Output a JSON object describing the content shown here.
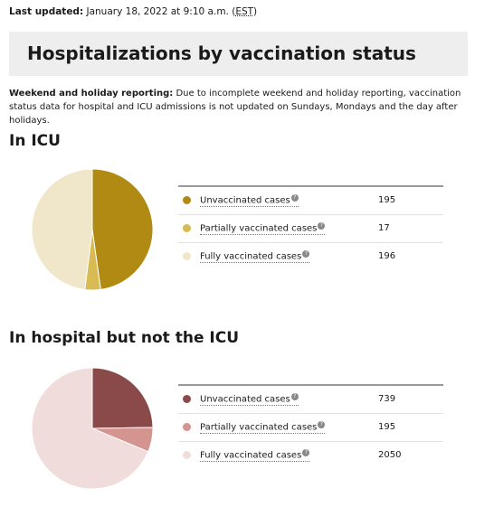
{
  "header": {
    "updated_label": "Last updated:",
    "updated_value": "January 18, 2022 at 9:10 a.m.",
    "timezone": "EST"
  },
  "title": "Hospitalizations by vaccination status",
  "note": {
    "label": "Weekend and holiday reporting:",
    "text": "Due to incomplete weekend and holiday reporting, vaccination status data for hospital and ICU admissions is not updated on Sundays, Mondays and the day after holidays."
  },
  "help_glyph": "?",
  "chart_data": [
    {
      "type": "pie",
      "title": "In ICU",
      "categories": [
        "Unvaccinated cases",
        "Partially vaccinated cases",
        "Fully vaccinated cases"
      ],
      "values": [
        195,
        17,
        196
      ],
      "colors": [
        "#b08a12",
        "#d8bb52",
        "#f0e6c9"
      ]
    },
    {
      "type": "pie",
      "title": "In hospital but not the ICU",
      "categories": [
        "Unvaccinated cases",
        "Partially vaccinated cases",
        "Fully vaccinated cases"
      ],
      "values": [
        739,
        195,
        2050
      ],
      "colors": [
        "#8b4a4a",
        "#d49490",
        "#f1dcdc"
      ]
    }
  ]
}
